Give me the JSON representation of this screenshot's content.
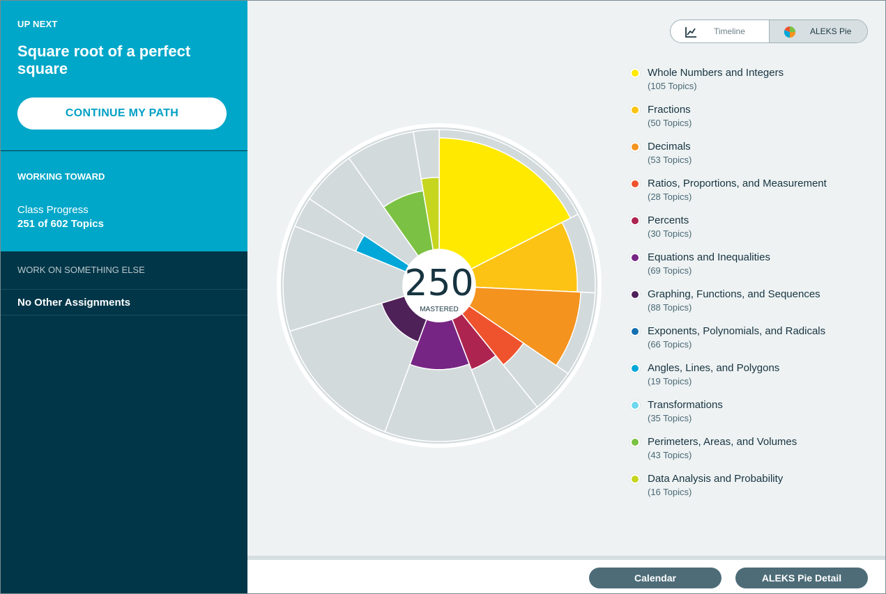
{
  "sidebar": {
    "up_next_label": "UP NEXT",
    "up_next_title": "Square root of a perfect square",
    "continue_label": "CONTINUE MY PATH",
    "working_toward_label": "WORKING TOWARD",
    "class_progress_label": "Class Progress",
    "class_progress_value": "251 of 602 Topics",
    "work_else_label": "WORK ON SOMETHING ELSE",
    "no_assignments_label": "No Other Assignments"
  },
  "view_toggle": {
    "options": [
      {
        "label": "Timeline",
        "icon": "line-chart-icon",
        "active": false
      },
      {
        "label": "ALEKS Pie",
        "icon": "pie-chart-icon",
        "active": true
      }
    ]
  },
  "pie": {
    "mastered_count": "250",
    "mastered_label": "MASTERED"
  },
  "chart_data": {
    "type": "pie",
    "slices": [
      {
        "name": "Whole Numbers and Integers",
        "topics": 105,
        "mastered_fraction": 0.93,
        "color": "#ffe900"
      },
      {
        "name": "Fractions",
        "topics": 50,
        "mastered_fraction": 0.85,
        "color": "#fcc314"
      },
      {
        "name": "Decimals",
        "topics": 53,
        "mastered_fraction": 0.88,
        "color": "#f4931e"
      },
      {
        "name": "Ratios, Proportions, and Measurement",
        "topics": 28,
        "mastered_fraction": 0.55,
        "color": "#ef532d"
      },
      {
        "name": "Percents",
        "topics": 30,
        "mastered_fraction": 0.45,
        "color": "#ad2450"
      },
      {
        "name": "Equations and Inequalities",
        "topics": 69,
        "mastered_fraction": 0.4,
        "color": "#772584"
      },
      {
        "name": "Graphing, Functions, and Sequences",
        "topics": 88,
        "mastered_fraction": 0.2,
        "color": "#4f2159"
      },
      {
        "name": "Exponents, Polynomials, and Radicals",
        "topics": 66,
        "mastered_fraction": 0.0,
        "color": "#1370b0"
      },
      {
        "name": "Angles, Lines, and Polygons",
        "topics": 19,
        "mastered_fraction": 0.45,
        "color": "#00a7d8"
      },
      {
        "name": "Transformations",
        "topics": 35,
        "mastered_fraction": 0.0,
        "color": "#6dd8ef"
      },
      {
        "name": "Perimeters, Areas, and Volumes",
        "topics": 43,
        "mastered_fraction": 0.5,
        "color": "#7bc143"
      },
      {
        "name": "Data Analysis and Probability",
        "topics": 16,
        "mastered_fraction": 0.6,
        "color": "#c6d51e"
      }
    ]
  },
  "legend": [
    {
      "name": "Whole Numbers and Integers",
      "count": "(105 Topics)",
      "color": "#ffe900"
    },
    {
      "name": "Fractions",
      "count": "(50 Topics)",
      "color": "#fcc314"
    },
    {
      "name": "Decimals",
      "count": "(53 Topics)",
      "color": "#f4931e"
    },
    {
      "name": "Ratios, Proportions, and Measurement",
      "count": "(28 Topics)",
      "color": "#ef532d"
    },
    {
      "name": "Percents",
      "count": "(30 Topics)",
      "color": "#ad2450"
    },
    {
      "name": "Equations and Inequalities",
      "count": "(69 Topics)",
      "color": "#772584"
    },
    {
      "name": "Graphing, Functions, and Sequences",
      "count": "(88 Topics)",
      "color": "#4f2159"
    },
    {
      "name": "Exponents, Polynomials, and Radicals",
      "count": "(66 Topics)",
      "color": "#1370b0"
    },
    {
      "name": "Angles, Lines, and Polygons",
      "count": "(19 Topics)",
      "color": "#00a7d8"
    },
    {
      "name": "Transformations",
      "count": "(35 Topics)",
      "color": "#6dd8ef"
    },
    {
      "name": "Perimeters, Areas, and Volumes",
      "count": "(43 Topics)",
      "color": "#7bc143"
    },
    {
      "name": "Data Analysis and Probability",
      "count": "(16 Topics)",
      "color": "#c6d51e"
    }
  ],
  "footer": {
    "calendar_label": "Calendar",
    "detail_label": "ALEKS Pie Detail"
  }
}
